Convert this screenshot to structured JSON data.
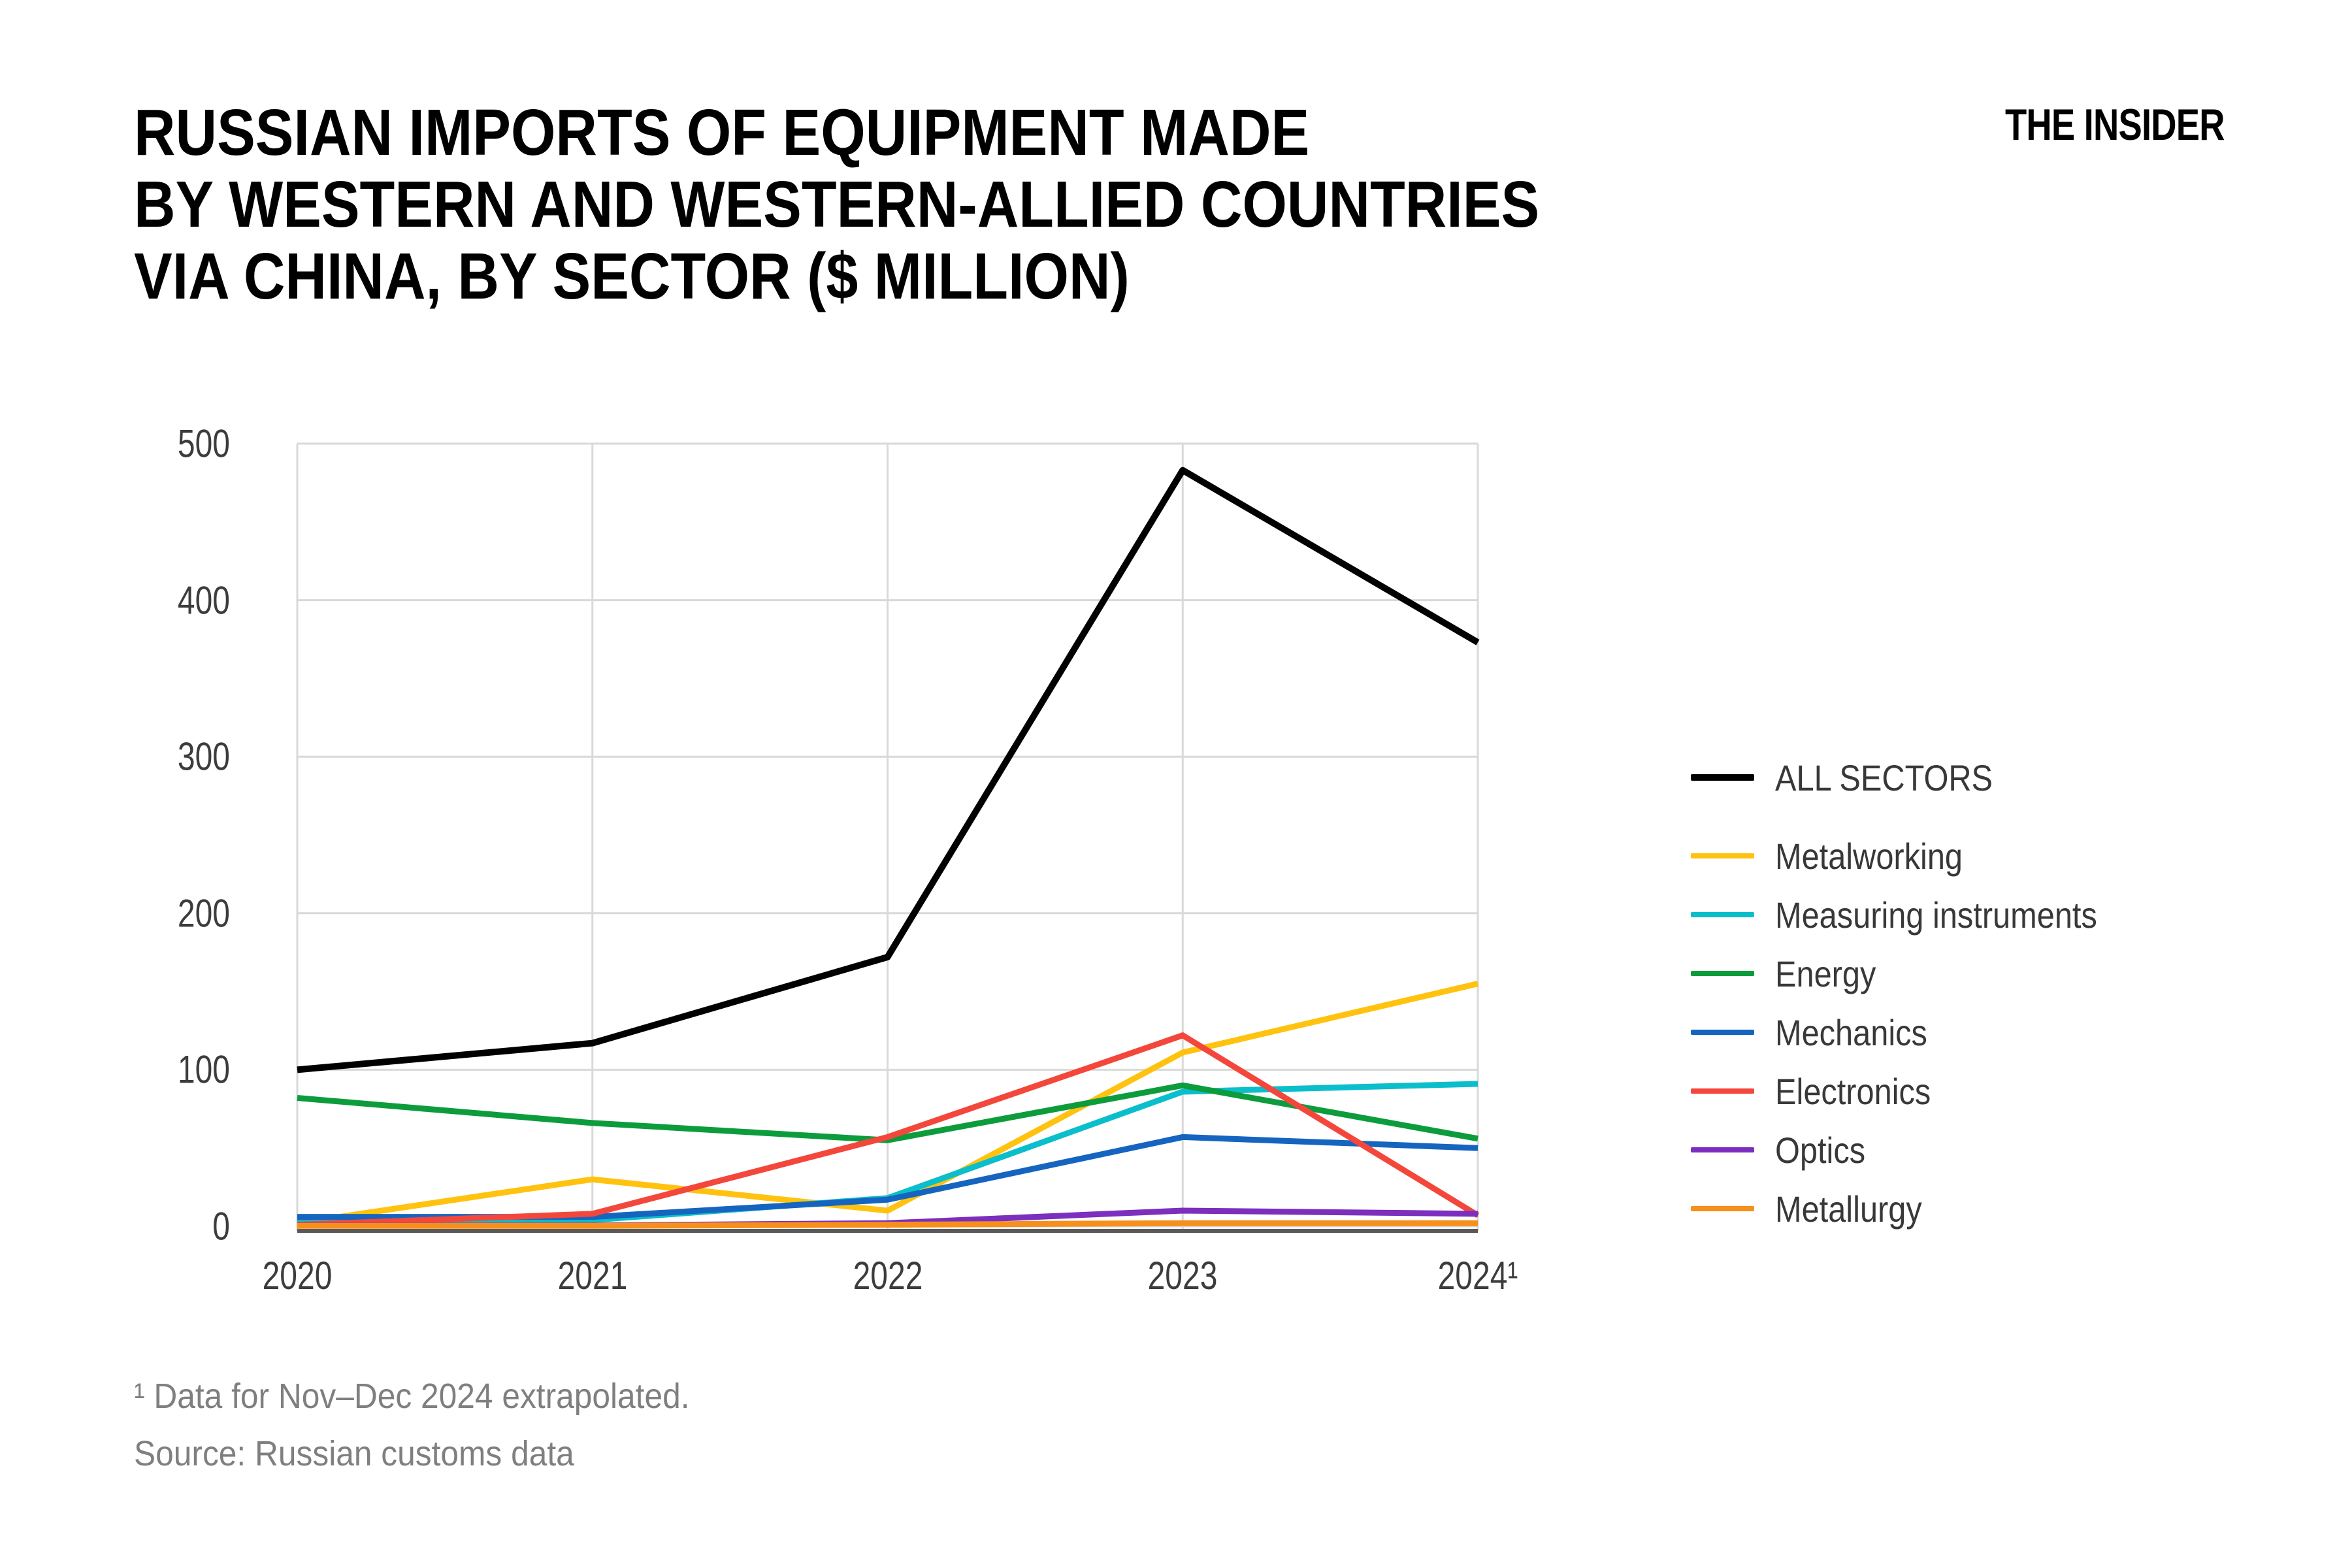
{
  "header": {
    "title_lines": [
      "RUSSIAN IMPORTS OF EQUIPMENT MADE",
      "BY WESTERN AND WESTERN-ALLIED COUNTRIES",
      "VIA CHINA, BY SECTOR ($ MILLION)"
    ],
    "logo_text": "THE INSIDER"
  },
  "chart_data": {
    "type": "line",
    "title": "RUSSIAN IMPORTS OF EQUIPMENT MADE BY WESTERN AND WESTERN-ALLIED COUNTRIES VIA CHINA, BY SECTOR ($ MILLION)",
    "xlabel": "",
    "ylabel": "",
    "x": [
      2020,
      2021,
      2022,
      2023,
      2024
    ],
    "x_tick_labels": [
      "2020",
      "2021",
      "2022",
      "2023",
      "2024¹"
    ],
    "y_ticks": [
      0,
      100,
      200,
      300,
      400,
      500
    ],
    "ylim": [
      0,
      500
    ],
    "grid": true,
    "legend_position": "right",
    "background": "#FFFFFF",
    "grid_color": "#D9D9D9",
    "axis_color": "#595959",
    "tick_label_color": "#3C3C3C",
    "footnote_color": "#7F7F7F",
    "series": [
      {
        "name": "ALL SECTORS",
        "color": "#000000",
        "emphasis": true,
        "values": [
          100,
          117,
          172,
          483,
          373
        ]
      },
      {
        "name": "Metalworking",
        "color": "#FFC20E",
        "emphasis": false,
        "values": [
          2,
          30,
          10,
          111,
          155
        ]
      },
      {
        "name": "Measuring instruments",
        "color": "#0BBECB",
        "emphasis": false,
        "values": [
          3,
          4,
          18,
          86,
          91
        ]
      },
      {
        "name": "Energy",
        "color": "#0D9C3C",
        "emphasis": false,
        "values": [
          82,
          66,
          55,
          90,
          56
        ]
      },
      {
        "name": "Mechanics",
        "color": "#1565C0",
        "emphasis": false,
        "values": [
          6,
          6,
          17,
          57,
          50
        ]
      },
      {
        "name": "Electronics",
        "color": "#F4473C",
        "emphasis": false,
        "values": [
          1,
          8,
          57,
          122,
          7
        ]
      },
      {
        "name": "Optics",
        "color": "#7C2EBE",
        "emphasis": false,
        "values": [
          0.5,
          0.5,
          2,
          10,
          8
        ]
      },
      {
        "name": "Metallurgy",
        "color": "#F78F1D",
        "emphasis": false,
        "values": [
          0.3,
          0.3,
          1,
          2,
          2
        ]
      }
    ]
  },
  "footnotes": {
    "note1": "¹ Data for Nov–Dec 2024 extrapolated.",
    "source": "Source: Russian customs data"
  }
}
